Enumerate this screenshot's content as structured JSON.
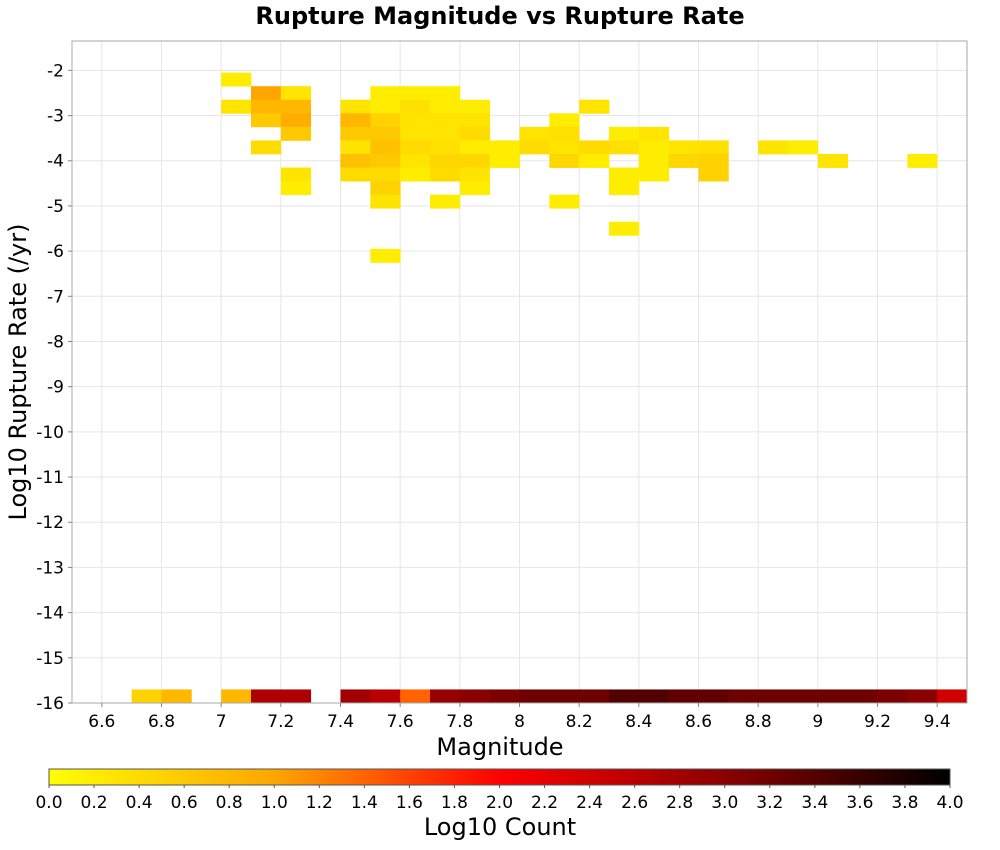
{
  "chart_data": {
    "type": "heatmap",
    "title": "Rupture Magnitude vs Rupture Rate",
    "xlabel": "Magnitude",
    "ylabel": "Log10 Rupture Rate (/yr)",
    "colorbar_label": "Log10 Count",
    "xlim": [
      6.5,
      9.5
    ],
    "ylim": [
      -16,
      -1.35
    ],
    "bin_width_x": 0.1,
    "bin_height_y": 0.3,
    "x_ticks": [
      6.6,
      6.8,
      7,
      7.2,
      7.4,
      7.6,
      7.8,
      8,
      8.2,
      8.4,
      8.6,
      8.8,
      9,
      9.2,
      9.4
    ],
    "x_tick_labels": [
      "6.6",
      "6.8",
      "7",
      "7.2",
      "7.4",
      "7.6",
      "7.8",
      "8",
      "8.2",
      "8.4",
      "8.6",
      "8.8",
      "9",
      "9.2",
      "9.4"
    ],
    "y_ticks": [
      -2,
      -3,
      -4,
      -5,
      -6,
      -7,
      -8,
      -9,
      -10,
      -11,
      -12,
      -13,
      -14,
      -15,
      -16
    ],
    "y_tick_labels": [
      "-2",
      "-3",
      "-4",
      "-5",
      "-6",
      "-7",
      "-8",
      "-9",
      "-10",
      "-11",
      "-12",
      "-13",
      "-14",
      "-15",
      "-16"
    ],
    "colorbar_ticks": [
      "0.0",
      "0.2",
      "0.4",
      "0.6",
      "0.8",
      "1.0",
      "1.2",
      "1.4",
      "1.6",
      "1.8",
      "2.0",
      "2.2",
      "2.4",
      "2.6",
      "2.8",
      "3.0",
      "3.2",
      "3.4",
      "3.6",
      "3.8",
      "4.0"
    ],
    "color_range": [
      0,
      4
    ],
    "colormap": [
      "#ffff00",
      "#ffa500",
      "#ff0000",
      "#8b0000",
      "#000000"
    ],
    "grid": true,
    "cells": [
      {
        "x": 7.05,
        "y": -2.2,
        "v": 0.2
      },
      {
        "x": 7.05,
        "y": -2.8,
        "v": 0.3
      },
      {
        "x": 7.15,
        "y": -2.5,
        "v": 1.0
      },
      {
        "x": 7.15,
        "y": -2.8,
        "v": 0.8
      },
      {
        "x": 7.15,
        "y": -3.1,
        "v": 0.6
      },
      {
        "x": 7.15,
        "y": -3.7,
        "v": 0.4
      },
      {
        "x": 7.25,
        "y": -2.5,
        "v": 0.3
      },
      {
        "x": 7.25,
        "y": -2.8,
        "v": 0.8
      },
      {
        "x": 7.25,
        "y": -3.1,
        "v": 0.9
      },
      {
        "x": 7.25,
        "y": -3.4,
        "v": 0.6
      },
      {
        "x": 7.25,
        "y": -4.3,
        "v": 0.3
      },
      {
        "x": 7.25,
        "y": -4.6,
        "v": 0.2
      },
      {
        "x": 7.45,
        "y": -2.8,
        "v": 0.3
      },
      {
        "x": 7.45,
        "y": -3.1,
        "v": 0.8
      },
      {
        "x": 7.45,
        "y": -3.4,
        "v": 0.6
      },
      {
        "x": 7.45,
        "y": -3.7,
        "v": 0.3
      },
      {
        "x": 7.45,
        "y": -4.0,
        "v": 0.7
      },
      {
        "x": 7.45,
        "y": -4.3,
        "v": 0.4
      },
      {
        "x": 7.55,
        "y": -2.5,
        "v": 0.2
      },
      {
        "x": 7.55,
        "y": -2.8,
        "v": 0.2
      },
      {
        "x": 7.55,
        "y": -3.1,
        "v": 0.5
      },
      {
        "x": 7.55,
        "y": -3.4,
        "v": 0.6
      },
      {
        "x": 7.55,
        "y": -3.7,
        "v": 0.7
      },
      {
        "x": 7.55,
        "y": -4.0,
        "v": 0.6
      },
      {
        "x": 7.55,
        "y": -4.3,
        "v": 0.4
      },
      {
        "x": 7.55,
        "y": -4.6,
        "v": 0.5
      },
      {
        "x": 7.55,
        "y": -4.9,
        "v": 0.3
      },
      {
        "x": 7.55,
        "y": -6.1,
        "v": 0.2
      },
      {
        "x": 7.65,
        "y": -2.5,
        "v": 0.2
      },
      {
        "x": 7.65,
        "y": -2.8,
        "v": 0.35
      },
      {
        "x": 7.65,
        "y": -3.1,
        "v": 0.3
      },
      {
        "x": 7.65,
        "y": -3.4,
        "v": 0.3
      },
      {
        "x": 7.65,
        "y": -3.7,
        "v": 0.4
      },
      {
        "x": 7.65,
        "y": -4.0,
        "v": 0.3
      },
      {
        "x": 7.65,
        "y": -4.3,
        "v": 0.2
      },
      {
        "x": 7.75,
        "y": -2.5,
        "v": 0.2
      },
      {
        "x": 7.75,
        "y": -2.8,
        "v": 0.2
      },
      {
        "x": 7.75,
        "y": -3.1,
        "v": 0.3
      },
      {
        "x": 7.75,
        "y": -3.4,
        "v": 0.3
      },
      {
        "x": 7.75,
        "y": -3.7,
        "v": 0.35
      },
      {
        "x": 7.75,
        "y": -4.0,
        "v": 0.45
      },
      {
        "x": 7.75,
        "y": -4.3,
        "v": 0.4
      },
      {
        "x": 7.75,
        "y": -4.9,
        "v": 0.2
      },
      {
        "x": 7.85,
        "y": -2.8,
        "v": 0.2
      },
      {
        "x": 7.85,
        "y": -3.1,
        "v": 0.3
      },
      {
        "x": 7.85,
        "y": -3.4,
        "v": 0.4
      },
      {
        "x": 7.85,
        "y": -3.7,
        "v": 0.2
      },
      {
        "x": 7.85,
        "y": -4.0,
        "v": 0.45
      },
      {
        "x": 7.85,
        "y": -4.3,
        "v": 0.3
      },
      {
        "x": 7.85,
        "y": -4.6,
        "v": 0.2
      },
      {
        "x": 7.95,
        "y": -3.7,
        "v": 0.2
      },
      {
        "x": 7.95,
        "y": -4.0,
        "v": 0.2
      },
      {
        "x": 8.05,
        "y": -3.4,
        "v": 0.3
      },
      {
        "x": 8.05,
        "y": -3.7,
        "v": 0.4
      },
      {
        "x": 8.15,
        "y": -3.1,
        "v": 0.2
      },
      {
        "x": 8.15,
        "y": -3.4,
        "v": 0.35
      },
      {
        "x": 8.15,
        "y": -3.7,
        "v": 0.3
      },
      {
        "x": 8.15,
        "y": -4.0,
        "v": 0.45
      },
      {
        "x": 8.15,
        "y": -4.9,
        "v": 0.2
      },
      {
        "x": 8.25,
        "y": -2.8,
        "v": 0.3
      },
      {
        "x": 8.25,
        "y": -3.7,
        "v": 0.4
      },
      {
        "x": 8.25,
        "y": -4.0,
        "v": 0.2
      },
      {
        "x": 8.35,
        "y": -3.4,
        "v": 0.2
      },
      {
        "x": 8.35,
        "y": -3.7,
        "v": 0.35
      },
      {
        "x": 8.35,
        "y": -4.3,
        "v": 0.2
      },
      {
        "x": 8.35,
        "y": -4.6,
        "v": 0.2
      },
      {
        "x": 8.35,
        "y": -5.5,
        "v": 0.2
      },
      {
        "x": 8.45,
        "y": -3.4,
        "v": 0.3
      },
      {
        "x": 8.45,
        "y": -3.7,
        "v": 0.2
      },
      {
        "x": 8.45,
        "y": -4.0,
        "v": 0.2
      },
      {
        "x": 8.45,
        "y": -4.3,
        "v": 0.2
      },
      {
        "x": 8.55,
        "y": -3.7,
        "v": 0.3
      },
      {
        "x": 8.55,
        "y": -4.0,
        "v": 0.45
      },
      {
        "x": 8.65,
        "y": -3.7,
        "v": 0.35
      },
      {
        "x": 8.65,
        "y": -4.0,
        "v": 0.5
      },
      {
        "x": 8.65,
        "y": -4.3,
        "v": 0.5
      },
      {
        "x": 8.85,
        "y": -3.7,
        "v": 0.3
      },
      {
        "x": 8.95,
        "y": -3.7,
        "v": 0.2
      },
      {
        "x": 9.05,
        "y": -4.0,
        "v": 0.3
      },
      {
        "x": 9.35,
        "y": -4.0,
        "v": 0.2
      },
      {
        "x": 6.75,
        "y": -15.85,
        "v": 0.5
      },
      {
        "x": 6.85,
        "y": -15.85,
        "v": 0.8
      },
      {
        "x": 7.05,
        "y": -15.85,
        "v": 0.8
      },
      {
        "x": 7.15,
        "y": -15.85,
        "v": 2.7
      },
      {
        "x": 7.25,
        "y": -15.85,
        "v": 2.7
      },
      {
        "x": 7.45,
        "y": -15.85,
        "v": 2.8
      },
      {
        "x": 7.55,
        "y": -15.85,
        "v": 2.6
      },
      {
        "x": 7.65,
        "y": -15.85,
        "v": 1.4
      },
      {
        "x": 7.75,
        "y": -15.85,
        "v": 2.9
      },
      {
        "x": 7.85,
        "y": -15.85,
        "v": 3.0
      },
      {
        "x": 7.95,
        "y": -15.85,
        "v": 3.1
      },
      {
        "x": 8.05,
        "y": -15.85,
        "v": 3.2
      },
      {
        "x": 8.15,
        "y": -15.85,
        "v": 3.2
      },
      {
        "x": 8.25,
        "y": -15.85,
        "v": 3.2
      },
      {
        "x": 8.35,
        "y": -15.85,
        "v": 3.4
      },
      {
        "x": 8.45,
        "y": -15.85,
        "v": 3.4
      },
      {
        "x": 8.55,
        "y": -15.85,
        "v": 3.3
      },
      {
        "x": 8.65,
        "y": -15.85,
        "v": 3.3
      },
      {
        "x": 8.75,
        "y": -15.85,
        "v": 3.2
      },
      {
        "x": 8.85,
        "y": -15.85,
        "v": 3.2
      },
      {
        "x": 8.95,
        "y": -15.85,
        "v": 3.2
      },
      {
        "x": 9.05,
        "y": -15.85,
        "v": 3.2
      },
      {
        "x": 9.15,
        "y": -15.85,
        "v": 3.2
      },
      {
        "x": 9.25,
        "y": -15.85,
        "v": 3.1
      },
      {
        "x": 9.35,
        "y": -15.85,
        "v": 3.0
      },
      {
        "x": 9.45,
        "y": -15.85,
        "v": 2.4
      }
    ]
  }
}
